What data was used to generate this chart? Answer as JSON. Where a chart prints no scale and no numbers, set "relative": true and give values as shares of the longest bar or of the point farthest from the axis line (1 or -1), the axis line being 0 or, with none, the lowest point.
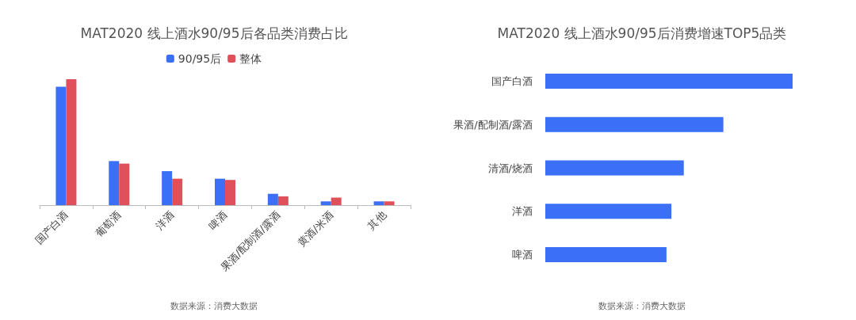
{
  "chart_data": [
    {
      "type": "bar",
      "title": "MAT2020 线上酒水90/95后各品类消费占比",
      "categories": [
        "国产白酒",
        "葡萄酒",
        "洋酒",
        "啤酒",
        "果酒/配制酒/露酒",
        "黄酒/米酒",
        "其他"
      ],
      "relative": true,
      "legend": "top",
      "series": [
        {
          "name": "90/95后",
          "color": "#3b6ff5",
          "values": [
            0.94,
            0.35,
            0.27,
            0.21,
            0.09,
            0.03,
            0.03
          ]
        },
        {
          "name": "整体",
          "color": "#e0505a",
          "values": [
            1,
            0.33,
            0.21,
            0.2,
            0.07,
            0.06,
            0.03
          ]
        }
      ],
      "annotations": [
        "数据来源：消费大数据"
      ]
    },
    {
      "type": "bar",
      "title": "MAT2020 线上酒水90/95后消费增速TOP5品类",
      "orientation": "horizontal",
      "categories": [
        "国产白酒",
        "果酒/配制酒/露酒",
        "清酒/烧酒",
        "洋酒",
        "啤酒"
      ],
      "relative": true,
      "series": [
        {
          "color": "#3b6ff5",
          "values": [
            1,
            0.72,
            0.56,
            0.51,
            0.49
          ]
        }
      ],
      "annotations": [
        "数据来源：消费大数据"
      ]
    }
  ]
}
